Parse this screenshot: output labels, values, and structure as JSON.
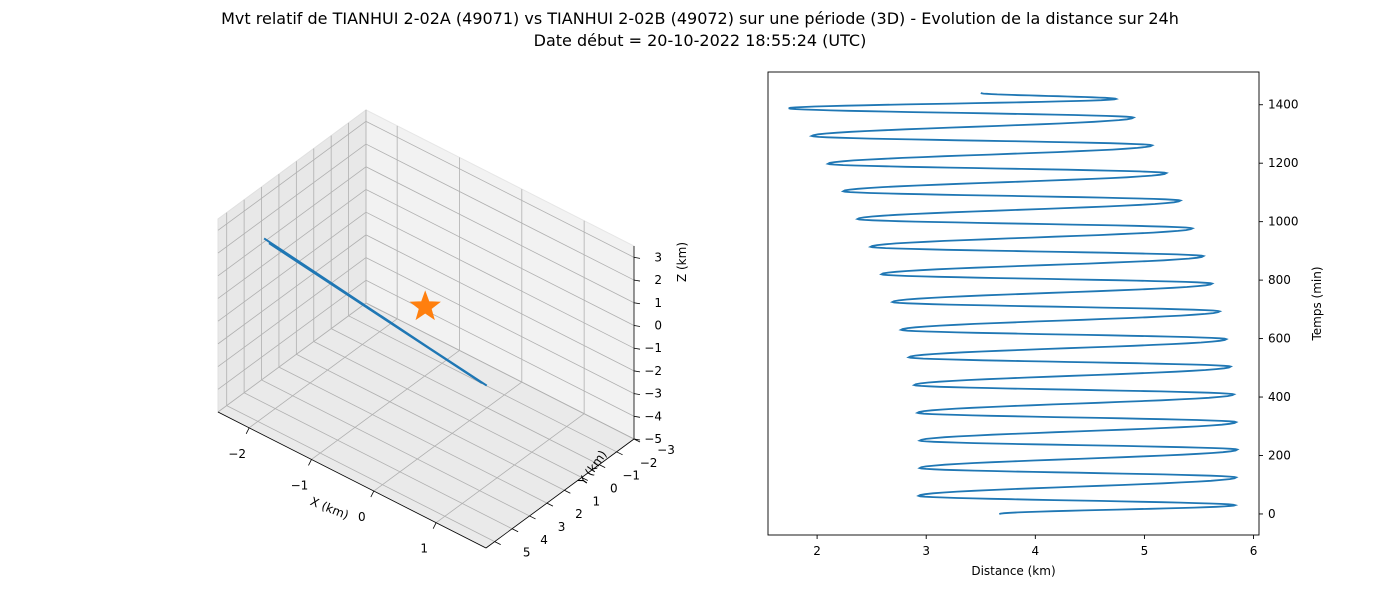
{
  "title": {
    "line1": "Mvt relatif de TIANHUI 2-02A (49071) vs TIANHUI 2-02B (49072) sur une période (3D) - Evolution de la distance sur 24h",
    "line2": "Date début = 20-10-2022 18:55:24 (UTC)"
  },
  "colors": {
    "series": "#1f77b4",
    "marker": "#ff7f0e",
    "pane": "#f2f2f2",
    "grid": "#b0b0b0"
  },
  "chart_data": [
    {
      "type": "line3d",
      "xlabel": "X (km)",
      "ylabel": "Y (km)",
      "zlabel": "Z (km)",
      "xlim": [
        -2.5,
        1.8
      ],
      "ylim": [
        -3,
        5.5
      ],
      "zlim": [
        -5,
        3.5
      ],
      "xticks": [
        -2,
        -1,
        0,
        1
      ],
      "yticks": [
        -3,
        -2,
        -1,
        0,
        1,
        2,
        3,
        4,
        5
      ],
      "zticks": [
        -5,
        -4,
        -3,
        -2,
        -1,
        0,
        1,
        2,
        3
      ],
      "xtick_labels": [
        "−2",
        "−1",
        "0",
        "1"
      ],
      "ytick_labels": [
        "−3",
        "−2",
        "−1",
        "0",
        "1",
        "2",
        "3",
        "4",
        "5"
      ],
      "ztick_labels": [
        "−5",
        "−4",
        "−3",
        "−2",
        "−1",
        "0",
        "1",
        "2",
        "3"
      ],
      "series": [
        {
          "points": [
            [
              -1.9,
              5.0,
              3.2
            ],
            [
              -0.25,
              -1.6,
              -4.6
            ],
            [
              -1.85,
              4.9,
              3.0
            ],
            [
              -0.2,
              -1.7,
              -4.7
            ]
          ]
        }
      ],
      "marker": {
        "shape": "star",
        "point": [
          -0.6,
          0.4,
          -0.6
        ]
      },
      "grid": true
    },
    {
      "type": "line",
      "xlabel": "Distance (km)",
      "ylabel": "Temps (min)",
      "xlim": [
        1.55,
        6.05
      ],
      "ylim": [
        -72,
        1512
      ],
      "xticks": [
        2,
        3,
        4,
        5,
        6
      ],
      "yticks": [
        0,
        200,
        400,
        600,
        800,
        1000,
        1200,
        1400
      ],
      "xtick_labels": [
        "2",
        "3",
        "4",
        "5",
        "6"
      ],
      "ytick_labels": [
        "0",
        "200",
        "400",
        "600",
        "800",
        "1000",
        "1200",
        "1400"
      ],
      "y_axis_side": "right",
      "grid": false,
      "start": {
        "t": 0,
        "d": 3.67
      },
      "end": {
        "t": 1440,
        "d": 3.5
      },
      "period_min": 94.7,
      "minima": [
        {
          "t": 62,
          "d": 2.93
        },
        {
          "t": 157,
          "d": 2.94
        },
        {
          "t": 251,
          "d": 2.94
        },
        {
          "t": 346,
          "d": 2.92
        },
        {
          "t": 441,
          "d": 2.89
        },
        {
          "t": 536,
          "d": 2.84
        },
        {
          "t": 630,
          "d": 2.77
        },
        {
          "t": 725,
          "d": 2.69
        },
        {
          "t": 820,
          "d": 2.59
        },
        {
          "t": 914,
          "d": 2.49
        },
        {
          "t": 1009,
          "d": 2.37
        },
        {
          "t": 1104,
          "d": 2.24
        },
        {
          "t": 1198,
          "d": 2.1
        },
        {
          "t": 1293,
          "d": 1.95
        },
        {
          "t": 1388,
          "d": 1.74
        }
      ],
      "maxima": [
        {
          "t": 30,
          "d": 5.83
        },
        {
          "t": 125,
          "d": 5.84
        },
        {
          "t": 220,
          "d": 5.85
        },
        {
          "t": 314,
          "d": 5.84
        },
        {
          "t": 409,
          "d": 5.82
        },
        {
          "t": 504,
          "d": 5.79
        },
        {
          "t": 598,
          "d": 5.75
        },
        {
          "t": 693,
          "d": 5.69
        },
        {
          "t": 788,
          "d": 5.62
        },
        {
          "t": 882,
          "d": 5.54
        },
        {
          "t": 977,
          "d": 5.44
        },
        {
          "t": 1072,
          "d": 5.33
        },
        {
          "t": 1166,
          "d": 5.2
        },
        {
          "t": 1261,
          "d": 5.07
        },
        {
          "t": 1356,
          "d": 4.9
        },
        {
          "t": 1420,
          "d": 4.74
        }
      ]
    }
  ]
}
